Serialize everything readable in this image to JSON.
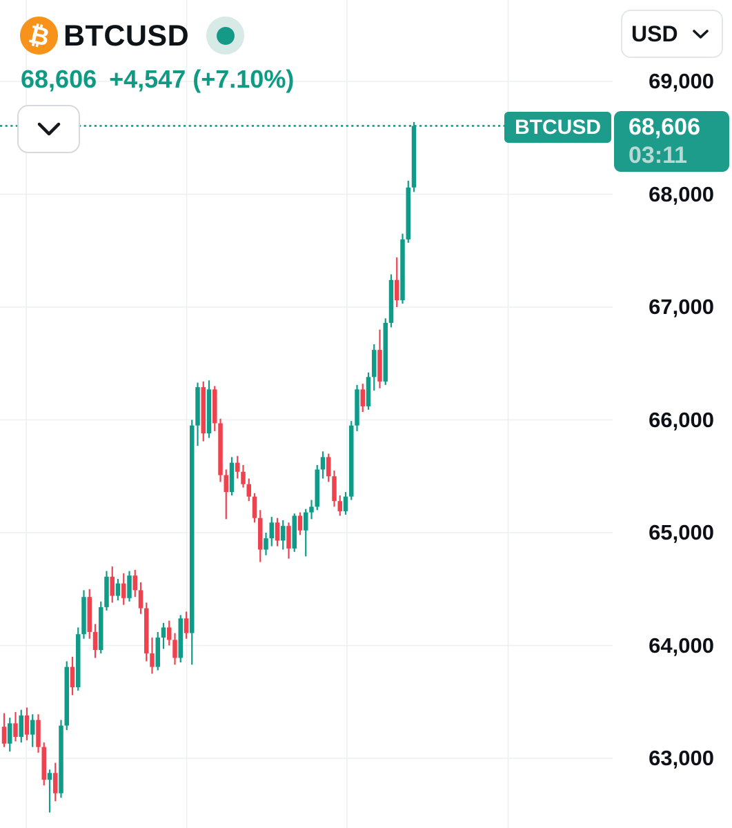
{
  "header": {
    "symbol": "BTCUSD",
    "last_price": "68,606",
    "change": "+4,547",
    "change_percent": "(+7.10%)",
    "status": "market-open"
  },
  "currency_selector": {
    "selected": "USD"
  },
  "expand_button": {
    "icon": "chevron-down-icon"
  },
  "price_axis": {
    "ticks": [
      {
        "label": "69,000",
        "price": 69000
      },
      {
        "label": "68,000",
        "price": 68000
      },
      {
        "label": "67,000",
        "price": 67000
      },
      {
        "label": "66,000",
        "price": 66000
      },
      {
        "label": "65,000",
        "price": 65000
      },
      {
        "label": "64,000",
        "price": 64000
      },
      {
        "label": "63,000",
        "price": 63000
      }
    ]
  },
  "last_price_marker": {
    "symbol_label": "BTCUSD",
    "price_label": "68,606",
    "countdown": "03:11",
    "price": 68606
  },
  "colors": {
    "up": "#109b88",
    "down": "#ef424f",
    "marker": "#1d9b8b",
    "header_accent": "#0f9a84",
    "dotted_line": "#129a89",
    "bitcoin_orange": "#f7931a",
    "grid": "#edeff1",
    "text": "#0d1317",
    "countdown_text": "#b7dad4",
    "status_halo": "#d7eae5",
    "status_core": "#169a88"
  },
  "chart_data": {
    "type": "candlestick",
    "symbol": "BTCUSD",
    "quote_currency": "USD",
    "last_price": 68606,
    "change": 4547,
    "change_percent": 7.1,
    "ylim": [
      62400,
      69700
    ],
    "y_ticks": [
      63000,
      64000,
      65000,
      66000,
      67000,
      68000,
      69000
    ],
    "grid": true,
    "up_color": "#109b88",
    "down_color": "#ef424f",
    "candles_ohlc": [
      [
        63280,
        63400,
        63100,
        63130
      ],
      [
        63130,
        63360,
        63060,
        63310
      ],
      [
        63310,
        63410,
        63150,
        63190
      ],
      [
        63190,
        63430,
        63140,
        63380
      ],
      [
        63380,
        63450,
        63160,
        63210
      ],
      [
        63210,
        63390,
        63100,
        63340
      ],
      [
        63340,
        63390,
        63050,
        63100
      ],
      [
        63100,
        63140,
        62760,
        62810
      ],
      [
        62810,
        62900,
        62520,
        62870
      ],
      [
        62870,
        62960,
        62620,
        62690
      ],
      [
        62690,
        63340,
        62650,
        63290
      ],
      [
        63290,
        63860,
        63250,
        63810
      ],
      [
        63810,
        63900,
        63560,
        63630
      ],
      [
        63630,
        64160,
        63600,
        64100
      ],
      [
        64100,
        64490,
        64060,
        64430
      ],
      [
        64430,
        64500,
        64060,
        64120
      ],
      [
        64120,
        64190,
        63890,
        63960
      ],
      [
        63960,
        64390,
        63930,
        64340
      ],
      [
        64340,
        64660,
        64310,
        64610
      ],
      [
        64610,
        64700,
        64380,
        64440
      ],
      [
        64440,
        64590,
        64400,
        64550
      ],
      [
        64550,
        64640,
        64360,
        64420
      ],
      [
        64420,
        64660,
        64390,
        64620
      ],
      [
        64620,
        64670,
        64430,
        64490
      ],
      [
        64490,
        64560,
        64280,
        64330
      ],
      [
        64330,
        64380,
        63860,
        63930
      ],
      [
        63930,
        64070,
        63750,
        63810
      ],
      [
        63810,
        64120,
        63780,
        64070
      ],
      [
        64070,
        64200,
        63970,
        64160
      ],
      [
        64160,
        64220,
        64000,
        64050
      ],
      [
        64050,
        64110,
        63830,
        63890
      ],
      [
        63890,
        64270,
        63850,
        64240
      ],
      [
        64240,
        64300,
        64060,
        64110
      ],
      [
        64110,
        66000,
        63830,
        65950
      ],
      [
        65950,
        66330,
        65770,
        66290
      ],
      [
        66290,
        66340,
        65810,
        65880
      ],
      [
        65880,
        66350,
        65840,
        66270
      ],
      [
        66270,
        66300,
        65900,
        65970
      ],
      [
        65970,
        66010,
        65450,
        65510
      ],
      [
        65510,
        65560,
        65120,
        65360
      ],
      [
        65360,
        65670,
        65330,
        65620
      ],
      [
        65620,
        65680,
        65480,
        65540
      ],
      [
        65540,
        65600,
        65400,
        65430
      ],
      [
        65430,
        65480,
        65280,
        65320
      ],
      [
        65320,
        65350,
        65090,
        65130
      ],
      [
        65130,
        65200,
        64740,
        64850
      ],
      [
        64850,
        65000,
        64800,
        64950
      ],
      [
        64950,
        65140,
        64880,
        65090
      ],
      [
        65090,
        65130,
        64880,
        64930
      ],
      [
        64930,
        65110,
        64850,
        65060
      ],
      [
        65060,
        65090,
        64770,
        64860
      ],
      [
        64860,
        65170,
        64830,
        65150
      ],
      [
        65150,
        65180,
        64980,
        65020
      ],
      [
        65020,
        65210,
        64790,
        65180
      ],
      [
        65180,
        65290,
        65120,
        65230
      ],
      [
        65230,
        65600,
        65200,
        65560
      ],
      [
        65560,
        65720,
        65480,
        65670
      ],
      [
        65670,
        65700,
        65450,
        65500
      ],
      [
        65500,
        65550,
        65230,
        65280
      ],
      [
        65280,
        65330,
        65150,
        65190
      ],
      [
        65190,
        65360,
        65160,
        65320
      ],
      [
        65320,
        65990,
        65290,
        65950
      ],
      [
        65950,
        66310,
        65900,
        66270
      ],
      [
        66270,
        66320,
        66070,
        66120
      ],
      [
        66120,
        66420,
        66090,
        66380
      ],
      [
        66380,
        66670,
        66260,
        66620
      ],
      [
        66620,
        66800,
        66280,
        66340
      ],
      [
        66340,
        66900,
        66310,
        66860
      ],
      [
        66860,
        67290,
        66820,
        67240
      ],
      [
        67240,
        67440,
        67000,
        67060
      ],
      [
        67060,
        67650,
        67030,
        67600
      ],
      [
        67600,
        68120,
        67570,
        68060
      ],
      [
        68060,
        68640,
        68020,
        68606
      ]
    ]
  }
}
